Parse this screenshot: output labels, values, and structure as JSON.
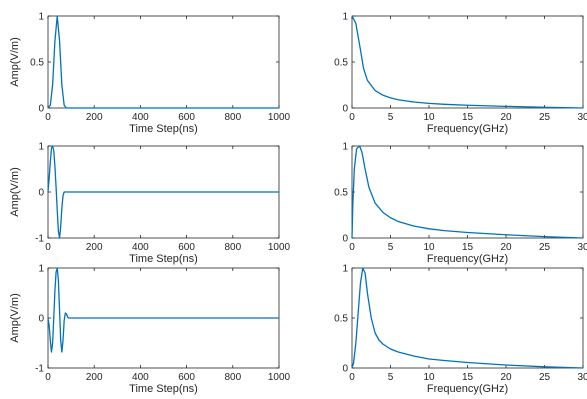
{
  "chart_data": [
    {
      "type": "line",
      "xlabel": "Time Step(ns)",
      "ylabel": "Amp(V/m)",
      "xlim": [
        0,
        1000
      ],
      "ylim": [
        0,
        1
      ],
      "xticks": [
        "0",
        "200",
        "400",
        "600",
        "800",
        "1000"
      ],
      "yticks": [
        "0",
        "0.5",
        "1"
      ],
      "series": [
        {
          "color": "#0072BD",
          "x": [
            0,
            10,
            20,
            30,
            40,
            50,
            60,
            70,
            80,
            100,
            200,
            400,
            600,
            800,
            1000
          ],
          "y": [
            0.0,
            0.03,
            0.25,
            0.73,
            1.0,
            0.73,
            0.25,
            0.03,
            0.0,
            0.0,
            0.0,
            0.0,
            0.0,
            0.0,
            0.0
          ]
        }
      ]
    },
    {
      "type": "line",
      "xlabel": "Frequency(GHz)",
      "ylabel": "",
      "xlim": [
        0,
        30
      ],
      "ylim": [
        0,
        1
      ],
      "xticks": [
        "0",
        "5",
        "10",
        "15",
        "20",
        "25",
        "30"
      ],
      "yticks": [
        "0",
        "0.5",
        "1"
      ],
      "series": [
        {
          "color": "#0072BD",
          "x": [
            0,
            0.5,
            1,
            1.5,
            2,
            3,
            4,
            5,
            6,
            8,
            10,
            12,
            15,
            20,
            25,
            30
          ],
          "y": [
            1.0,
            0.92,
            0.68,
            0.43,
            0.3,
            0.19,
            0.14,
            0.11,
            0.09,
            0.065,
            0.05,
            0.04,
            0.03,
            0.018,
            0.008,
            0.0
          ]
        }
      ]
    },
    {
      "type": "line",
      "xlabel": "Time Step(ns)",
      "ylabel": "Amp(V/m)",
      "xlim": [
        0,
        1000
      ],
      "ylim": [
        -1,
        1
      ],
      "xticks": [
        "0",
        "200",
        "400",
        "600",
        "800",
        "1000"
      ],
      "yticks": [
        "-1",
        "0",
        "1"
      ],
      "series": [
        {
          "color": "#0072BD",
          "x": [
            0,
            5,
            10,
            15,
            20,
            25,
            30,
            35,
            40,
            45,
            50,
            55,
            60,
            65,
            70,
            75,
            80,
            90,
            100,
            200,
            400,
            600,
            800,
            1000
          ],
          "y": [
            0.0,
            0.3,
            0.65,
            0.95,
            1.0,
            0.9,
            0.55,
            0.1,
            -0.4,
            -0.85,
            -1.0,
            -0.75,
            -0.35,
            -0.08,
            0.0,
            0.0,
            0.0,
            0.0,
            0.0,
            0.0,
            0.0,
            0.0,
            0.0,
            0.0
          ]
        }
      ]
    },
    {
      "type": "line",
      "xlabel": "Frequency(GHz)",
      "ylabel": "",
      "xlim": [
        0,
        30
      ],
      "ylim": [
        0,
        1
      ],
      "xticks": [
        "0",
        "5",
        "10",
        "15",
        "20",
        "25",
        "30"
      ],
      "yticks": [
        "0",
        "0.5",
        "1"
      ],
      "series": [
        {
          "color": "#0072BD",
          "x": [
            0,
            0.1,
            0.3,
            0.6,
            1.0,
            1.3,
            1.7,
            2.2,
            3,
            4,
            5,
            6,
            8,
            10,
            12,
            15,
            20,
            25,
            30
          ],
          "y": [
            0.0,
            0.35,
            0.75,
            0.97,
            1.0,
            0.93,
            0.75,
            0.55,
            0.38,
            0.28,
            0.22,
            0.18,
            0.13,
            0.1,
            0.08,
            0.06,
            0.035,
            0.015,
            0.0
          ]
        }
      ]
    },
    {
      "type": "line",
      "xlabel": "Time Step(ns)",
      "ylabel": "Amp(V/m)",
      "xlim": [
        0,
        1000
      ],
      "ylim": [
        -1,
        1
      ],
      "xticks": [
        "0",
        "200",
        "400",
        "600",
        "800",
        "1000"
      ],
      "yticks": [
        "-1",
        "0",
        "1"
      ],
      "series": [
        {
          "color": "#0072BD",
          "x": [
            0,
            5,
            10,
            15,
            20,
            25,
            30,
            35,
            40,
            45,
            50,
            55,
            60,
            65,
            70,
            75,
            80,
            85,
            90,
            100,
            200,
            400,
            600,
            800,
            1000
          ],
          "y": [
            0.0,
            -0.15,
            -0.45,
            -0.68,
            -0.5,
            0.0,
            0.55,
            0.92,
            1.0,
            0.75,
            0.15,
            -0.45,
            -0.68,
            -0.45,
            -0.05,
            0.1,
            0.08,
            0.02,
            0.0,
            0.0,
            0.0,
            0.0,
            0.0,
            0.0,
            0.0
          ]
        }
      ]
    },
    {
      "type": "line",
      "xlabel": "Frequency(GHz)",
      "ylabel": "",
      "xlim": [
        0,
        30
      ],
      "ylim": [
        0,
        1
      ],
      "xticks": [
        "0",
        "5",
        "10",
        "15",
        "20",
        "25",
        "30"
      ],
      "yticks": [
        "0",
        "0.5",
        "1"
      ],
      "series": [
        {
          "color": "#0072BD",
          "x": [
            0,
            0.2,
            0.5,
            0.8,
            1.1,
            1.4,
            1.7,
            2.0,
            2.5,
            3,
            3.5,
            4,
            5,
            6,
            8,
            10,
            12,
            15,
            20,
            25,
            30
          ],
          "y": [
            0.0,
            0.05,
            0.25,
            0.55,
            0.85,
            1.0,
            0.95,
            0.75,
            0.5,
            0.35,
            0.28,
            0.24,
            0.19,
            0.16,
            0.12,
            0.09,
            0.075,
            0.055,
            0.03,
            0.012,
            0.0
          ]
        }
      ]
    }
  ]
}
